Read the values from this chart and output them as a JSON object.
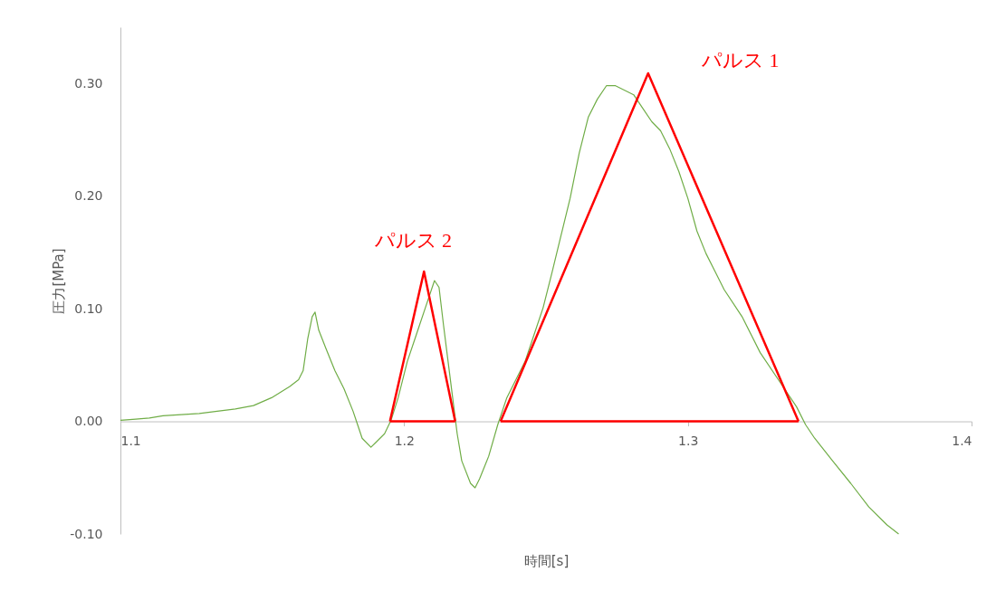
{
  "chart_data": {
    "type": "line",
    "xlabel": "時間[s]",
    "ylabel": "圧力[MPa]",
    "xlim": [
      1.1,
      1.4
    ],
    "xticks": [
      1.1,
      1.2,
      1.3,
      1.4
    ],
    "ylim": [
      -0.1,
      0.35
    ],
    "yticks": [
      {
        "value": -0.1,
        "label": "-0.10"
      },
      {
        "value": 0,
        "label": "0.00"
      },
      {
        "value": 0.1,
        "label": "0.10"
      },
      {
        "value": 0.2,
        "label": "0.20"
      },
      {
        "value": 0.3,
        "label": "0.30"
      }
    ],
    "grid": false,
    "legend": false,
    "marker": "none",
    "line_style": "solid",
    "series": [
      {
        "color": "#70ad47",
        "x": [
          1.1,
          1.1054,
          1.1102,
          1.115,
          1.1214,
          1.1278,
          1.1341,
          1.1405,
          1.1469,
          1.1533,
          1.1565,
          1.1597,
          1.1628,
          1.1644,
          1.166,
          1.1676,
          1.1686,
          1.1699,
          1.1724,
          1.1756,
          1.1788,
          1.182,
          1.1836,
          1.1852,
          1.1883,
          1.1899,
          1.1931,
          1.1954,
          1.1979,
          1.2011,
          1.2043,
          1.2075,
          1.2107,
          1.2123,
          1.2139,
          1.2155,
          1.2171,
          1.2187,
          1.2203,
          1.2234,
          1.225,
          1.2266,
          1.2298,
          1.233,
          1.2362,
          1.2394,
          1.2426,
          1.2458,
          1.249,
          1.2522,
          1.2553,
          1.2585,
          1.2617,
          1.2649,
          1.2681,
          1.2713,
          1.2745,
          1.2777,
          1.2809,
          1.2841,
          1.2873,
          1.2904,
          1.2936,
          1.2968,
          1.3,
          1.3032,
          1.3064,
          1.3096,
          1.3128,
          1.3191,
          1.3255,
          1.3319,
          1.3383,
          1.3415,
          1.3447,
          1.351,
          1.3574,
          1.3638,
          1.3702,
          1.3743
        ],
        "values": [
          0.001,
          0.002,
          0.003,
          0.005,
          0.006,
          0.007,
          0.009,
          0.011,
          0.014,
          0.021,
          0.026,
          0.031,
          0.037,
          0.045,
          0.073,
          0.093,
          0.097,
          0.081,
          0.065,
          0.045,
          0.029,
          0.009,
          -0.003,
          -0.015,
          -0.023,
          -0.019,
          -0.011,
          0.001,
          0.021,
          0.053,
          0.077,
          0.101,
          0.125,
          0.119,
          0.085,
          0.053,
          0.021,
          -0.011,
          -0.035,
          -0.055,
          -0.059,
          -0.051,
          -0.031,
          -0.003,
          0.021,
          0.037,
          0.053,
          0.077,
          0.101,
          0.133,
          0.165,
          0.198,
          0.238,
          0.27,
          0.286,
          0.298,
          0.298,
          0.294,
          0.29,
          0.278,
          0.266,
          0.258,
          0.242,
          0.222,
          0.198,
          0.169,
          0.149,
          0.133,
          0.117,
          0.093,
          0.061,
          0.037,
          0.013,
          -0.003,
          -0.015,
          -0.035,
          -0.055,
          -0.076,
          -0.092,
          -0.1
        ]
      },
      {
        "name": "パルス 1",
        "color": "#ff0000",
        "x": [
          1.234,
          1.286,
          1.339
        ],
        "values": [
          0,
          0.309,
          0
        ]
      },
      {
        "name": "パルス 2",
        "color": "#ff0000",
        "x": [
          1.195,
          1.207,
          1.218
        ],
        "values": [
          0,
          0.133,
          0
        ]
      },
      {
        "color": "#ff0000",
        "x": [
          1.234,
          1.339
        ],
        "values": [
          0,
          0
        ]
      },
      {
        "color": "#ff0000",
        "x": [
          1.195,
          1.218
        ],
        "values": [
          0,
          0
        ]
      }
    ]
  }
}
